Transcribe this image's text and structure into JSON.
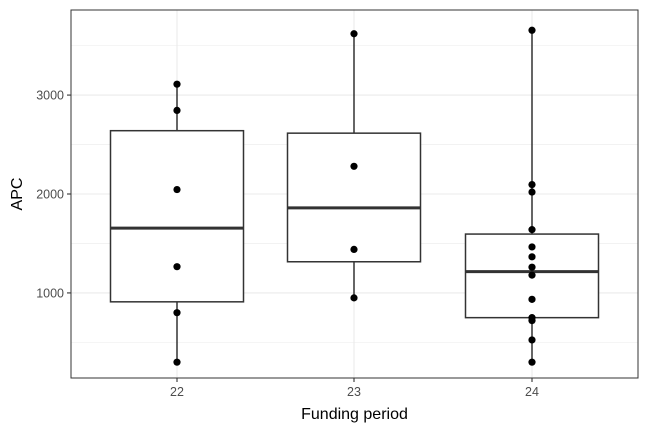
{
  "chart_data": {
    "type": "boxplot",
    "xlabel": "Funding period",
    "ylabel": "APC",
    "categories": [
      "22",
      "23",
      "24"
    ],
    "yticks": [
      1000,
      2000,
      3000
    ],
    "ylim": [
      140,
      3860
    ],
    "grid": true,
    "boxes": [
      {
        "category": "22",
        "whisker_low": 300,
        "q1": 910,
        "median": 1655,
        "q3": 2640,
        "whisker_high": 3110
      },
      {
        "category": "23",
        "whisker_low": 950,
        "q1": 1315,
        "median": 1860,
        "q3": 2615,
        "whisker_high": 3620
      },
      {
        "category": "24",
        "whisker_low": 300,
        "q1": 750,
        "median": 1215,
        "q3": 1595,
        "whisker_high": 3655
      }
    ],
    "points": [
      {
        "category": "22",
        "values": [
          300,
          800,
          1265,
          2045,
          2845,
          3110
        ]
      },
      {
        "category": "23",
        "values": [
          950,
          1440,
          2280,
          3620
        ]
      },
      {
        "category": "24",
        "values": [
          300,
          525,
          720,
          750,
          935,
          1180,
          1260,
          1365,
          1465,
          1640,
          2020,
          2095,
          3655
        ]
      }
    ],
    "colors": {
      "box_line": "#333333",
      "point": "#000000",
      "grid": "#ebebeb",
      "panel_border": "#333333"
    }
  }
}
